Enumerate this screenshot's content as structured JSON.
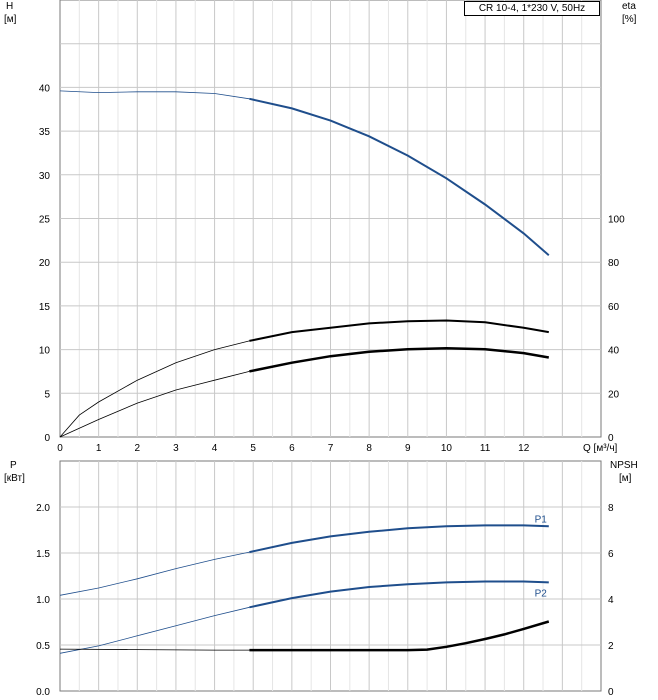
{
  "chart_data": [
    {
      "type": "line",
      "panel": "upper",
      "title": "CR 10-4, 1*230 V, 50Hz",
      "xlabel": "Q [м³/ч]",
      "ylabel_left": "H\n[м]",
      "ylabel_right": "eta\n[%]",
      "xlim": [
        0,
        14
      ],
      "ylim_left": [
        0,
        50
      ],
      "ylim_right": [
        0,
        200
      ],
      "x_ticks": [
        0,
        1,
        2,
        3,
        4,
        5,
        6,
        7,
        8,
        9,
        10,
        11,
        12
      ],
      "y_ticks_left": [
        0,
        5,
        10,
        15,
        20,
        25,
        30,
        35,
        40
      ],
      "y_ticks_right": [
        0,
        20,
        40,
        60,
        80,
        100
      ],
      "grid": true,
      "series": [
        {
          "name": "H",
          "axis": "left",
          "color": "#1f4e8c",
          "x": [
            0,
            1,
            2,
            3,
            4,
            4.9,
            6,
            7,
            8,
            9,
            10,
            11,
            12,
            12.65
          ],
          "y": [
            39.6,
            39.4,
            39.5,
            39.5,
            39.3,
            38.7,
            37.6,
            36.2,
            34.4,
            32.2,
            29.6,
            26.6,
            23.3,
            20.8
          ]
        },
        {
          "name": "eta",
          "axis": "right",
          "color": "#000000",
          "x": [
            0,
            0.5,
            1,
            2,
            3,
            4,
            4.9,
            6,
            7,
            8,
            9,
            10,
            11,
            12,
            12.65
          ],
          "y": [
            0,
            10,
            16,
            26,
            34,
            40,
            44,
            48,
            50,
            52,
            53,
            53.3,
            52.5,
            50,
            48
          ]
        },
        {
          "name": "eta-combined",
          "axis": "right",
          "color": "#000000",
          "x": [
            0,
            1,
            2,
            3,
            4,
            4.9,
            6,
            7,
            8,
            9,
            10,
            11,
            12,
            12.65
          ],
          "y": [
            0,
            8,
            15.5,
            21.5,
            26,
            30,
            34,
            37,
            39,
            40.2,
            40.6,
            40.2,
            38.4,
            36.4
          ]
        }
      ]
    },
    {
      "type": "line",
      "panel": "lower",
      "ylabel_left": "P\n[кВт]",
      "ylabel_right": "NPSH\n[м]",
      "xlim": [
        0,
        14
      ],
      "ylim_left": [
        0,
        2.5
      ],
      "ylim_right": [
        0,
        10
      ],
      "y_ticks_left": [
        "0.0",
        "0.5",
        "1.0",
        "1.5",
        "2.0"
      ],
      "y_ticks_right": [
        0,
        2,
        4,
        6,
        8
      ],
      "grid": true,
      "series": [
        {
          "name": "P1",
          "axis": "left",
          "color": "#1f4e8c",
          "x": [
            0,
            1,
            2,
            3,
            4,
            4.9,
            6,
            7,
            8,
            9,
            10,
            11,
            12,
            12.65
          ],
          "y": [
            1.04,
            1.12,
            1.22,
            1.33,
            1.43,
            1.51,
            1.61,
            1.68,
            1.73,
            1.77,
            1.79,
            1.8,
            1.8,
            1.79
          ]
        },
        {
          "name": "P2",
          "axis": "left",
          "color": "#1f4e8c",
          "x": [
            0,
            1,
            2,
            3,
            4,
            4.9,
            6,
            7,
            8,
            9,
            10,
            11,
            12,
            12.65
          ],
          "y": [
            0.41,
            0.49,
            0.6,
            0.71,
            0.82,
            0.91,
            1.01,
            1.08,
            1.13,
            1.16,
            1.18,
            1.19,
            1.19,
            1.18
          ]
        },
        {
          "name": "NPSH",
          "axis": "right",
          "color": "#000000",
          "x": [
            0,
            2,
            4,
            4.9,
            6,
            7,
            8,
            9,
            9.5,
            10,
            10.5,
            11,
            11.5,
            12,
            12.65
          ],
          "y": [
            1.82,
            1.8,
            1.78,
            1.78,
            1.78,
            1.78,
            1.78,
            1.78,
            1.8,
            1.92,
            2.08,
            2.26,
            2.46,
            2.7,
            3.02
          ]
        }
      ]
    }
  ]
}
